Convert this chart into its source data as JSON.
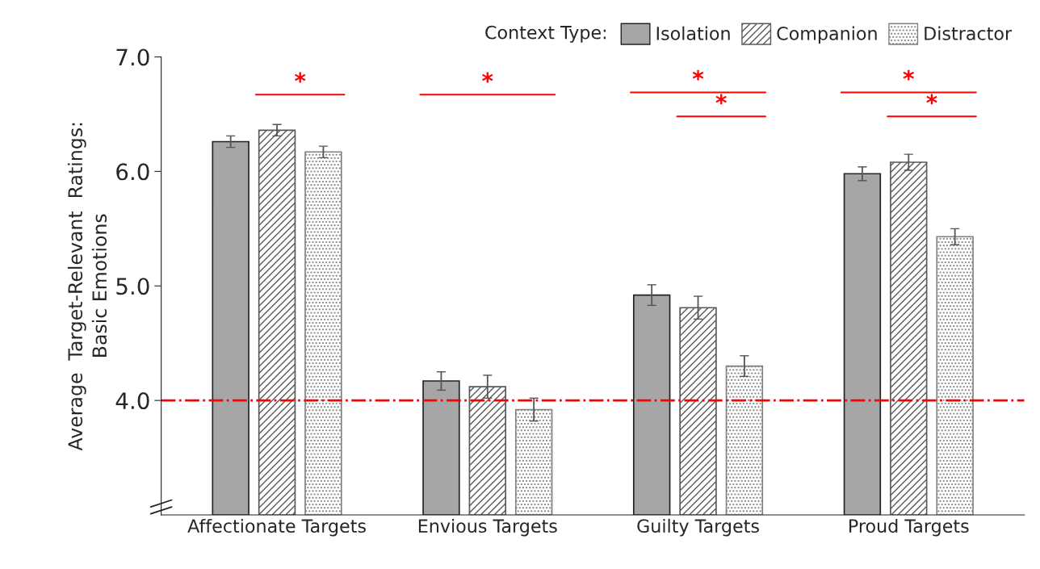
{
  "chart_data": {
    "type": "bar",
    "ylabel": "Average  Target-Relevant  Ratings:\nBasic Emotions",
    "legend_title": "Context Type:",
    "categories": [
      "Affectionate Targets",
      "Envious Targets",
      "Guilty Targets",
      "Proud Targets"
    ],
    "series": [
      {
        "name": "Isolation",
        "color": "#a6a6a6",
        "values": [
          6.26,
          4.17,
          4.92,
          5.98
        ],
        "errors": [
          0.05,
          0.08,
          0.09,
          0.06
        ]
      },
      {
        "name": "Companion",
        "color": "#595959",
        "values": [
          6.36,
          4.12,
          4.81,
          6.08
        ],
        "errors": [
          0.05,
          0.1,
          0.1,
          0.07
        ]
      },
      {
        "name": "Distractor",
        "color": "#808080",
        "values": [
          6.17,
          3.92,
          4.3,
          5.43
        ],
        "errors": [
          0.05,
          0.1,
          0.09,
          0.07
        ]
      }
    ],
    "ylim": [
      3,
      7
    ],
    "yticks": [
      {
        "value": 4,
        "label": "4.0"
      },
      {
        "value": 5,
        "label": "5.0"
      },
      {
        "value": 6,
        "label": "6.0"
      },
      {
        "value": 7,
        "label": "7.0"
      }
    ],
    "ref_lines": [
      {
        "axis": "y",
        "value": 4,
        "color": "#ff0000",
        "line_style": "dashdot"
      }
    ],
    "annotations": [
      "*",
      "*",
      "*",
      "*",
      "*",
      "*"
    ],
    "grid": false,
    "legend": "top right"
  }
}
